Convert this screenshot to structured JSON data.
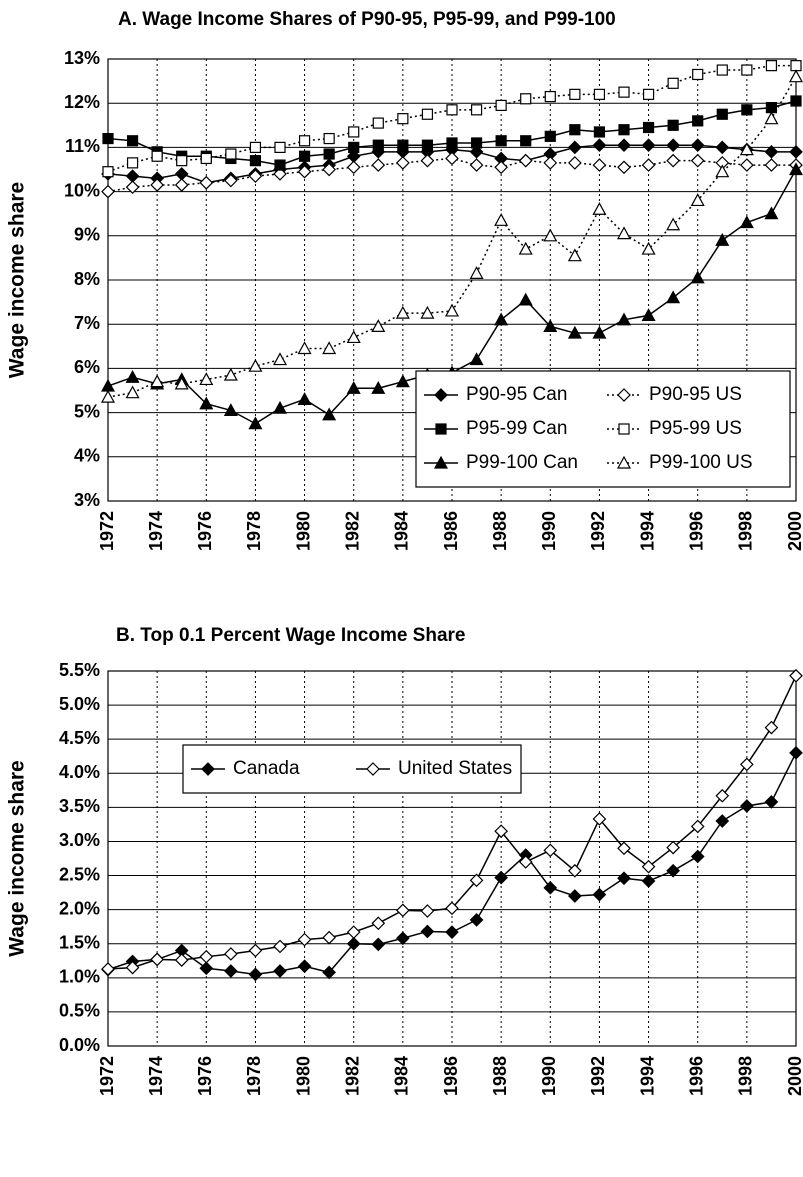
{
  "chart_data": [
    {
      "type": "line",
      "title": "A. Wage Income Shares of P90-95, P95-99, and P99-100",
      "y_label": "Wage income share",
      "x": [
        1972,
        1973,
        1974,
        1975,
        1976,
        1977,
        1978,
        1979,
        1980,
        1981,
        1982,
        1983,
        1984,
        1985,
        1986,
        1987,
        1988,
        1989,
        1990,
        1991,
        1992,
        1993,
        1994,
        1995,
        1996,
        1997,
        1998,
        1999,
        2000
      ],
      "xlim": [
        1972,
        2000
      ],
      "xticks": [
        1972,
        1974,
        1976,
        1978,
        1980,
        1982,
        1984,
        1986,
        1988,
        1990,
        1992,
        1994,
        1996,
        1998,
        2000
      ],
      "ylim": [
        3,
        13
      ],
      "yticks": [
        {
          "value": 3,
          "label": "3%"
        },
        {
          "value": 4,
          "label": "4%"
        },
        {
          "value": 5,
          "label": "5%"
        },
        {
          "value": 6,
          "label": "6%"
        },
        {
          "value": 7,
          "label": "7%"
        },
        {
          "value": 8,
          "label": "8%"
        },
        {
          "value": 9,
          "label": "9%"
        },
        {
          "value": 10,
          "label": "10%"
        },
        {
          "value": 11,
          "label": "11%"
        },
        {
          "value": 12,
          "label": "12%"
        },
        {
          "value": 13,
          "label": "13%"
        }
      ],
      "grid": true,
      "legend": "lower right",
      "legend_columns": 2,
      "series": [
        {
          "name": "P90-95 Can",
          "color": "#000000",
          "marker": "diamond",
          "filled": true,
          "dashed": false,
          "values": [
            10.4,
            10.35,
            10.3,
            10.4,
            10.2,
            10.3,
            10.4,
            10.5,
            10.55,
            10.6,
            10.8,
            10.9,
            10.9,
            10.9,
            10.95,
            10.9,
            10.75,
            10.7,
            10.85,
            11.0,
            11.05,
            11.05,
            11.05,
            11.05,
            11.05,
            11.0,
            10.95,
            10.9,
            10.9
          ]
        },
        {
          "name": "P90-95 US",
          "color": "#000000",
          "marker": "diamond",
          "filled": false,
          "dashed": true,
          "values": [
            10.0,
            10.1,
            10.15,
            10.15,
            10.2,
            10.25,
            10.35,
            10.4,
            10.45,
            10.5,
            10.55,
            10.6,
            10.65,
            10.7,
            10.75,
            10.6,
            10.55,
            10.7,
            10.65,
            10.65,
            10.6,
            10.55,
            10.6,
            10.7,
            10.7,
            10.65,
            10.6,
            10.6,
            10.6
          ]
        },
        {
          "name": "P95-99 Can",
          "color": "#000000",
          "marker": "square",
          "filled": true,
          "dashed": false,
          "values": [
            11.2,
            11.15,
            10.9,
            10.8,
            10.8,
            10.75,
            10.7,
            10.6,
            10.8,
            10.85,
            11.0,
            11.05,
            11.05,
            11.05,
            11.1,
            11.1,
            11.15,
            11.15,
            11.25,
            11.4,
            11.35,
            11.4,
            11.45,
            11.5,
            11.6,
            11.75,
            11.85,
            11.9,
            12.05
          ]
        },
        {
          "name": "P95-99 US",
          "color": "#000000",
          "marker": "square",
          "filled": false,
          "dashed": true,
          "values": [
            10.45,
            10.65,
            10.8,
            10.7,
            10.75,
            10.85,
            11.0,
            11.0,
            11.15,
            11.2,
            11.35,
            11.55,
            11.65,
            11.75,
            11.85,
            11.85,
            11.95,
            12.1,
            12.15,
            12.2,
            12.2,
            12.25,
            12.2,
            12.45,
            12.65,
            12.75,
            12.75,
            12.85,
            12.85
          ]
        },
        {
          "name": "P99-100 Can",
          "color": "#000000",
          "marker": "triangle",
          "filled": true,
          "dashed": false,
          "values": [
            5.6,
            5.8,
            5.65,
            5.75,
            5.2,
            5.05,
            4.75,
            5.1,
            5.3,
            4.95,
            5.55,
            5.55,
            5.7,
            5.85,
            5.9,
            6.2,
            7.1,
            7.55,
            6.95,
            6.8,
            6.8,
            7.1,
            7.2,
            7.6,
            8.05,
            8.9,
            9.3,
            9.5,
            10.5
          ]
        },
        {
          "name": "P99-100 US",
          "color": "#000000",
          "marker": "triangle",
          "filled": false,
          "dashed": true,
          "values": [
            5.35,
            5.45,
            5.7,
            5.65,
            5.75,
            5.85,
            6.05,
            6.2,
            6.45,
            6.45,
            6.7,
            6.95,
            7.25,
            7.25,
            7.3,
            8.15,
            9.35,
            8.7,
            9.0,
            8.55,
            9.6,
            9.05,
            8.7,
            9.25,
            9.8,
            10.45,
            10.95,
            11.65,
            12.6
          ]
        }
      ]
    },
    {
      "type": "line",
      "title": "B. Top 0.1 Percent Wage Income Share",
      "y_label": "Wage income share",
      "x": [
        1972,
        1973,
        1974,
        1975,
        1976,
        1977,
        1978,
        1979,
        1980,
        1981,
        1982,
        1983,
        1984,
        1985,
        1986,
        1987,
        1988,
        1989,
        1990,
        1991,
        1992,
        1993,
        1994,
        1995,
        1996,
        1997,
        1998,
        1999,
        2000
      ],
      "xlim": [
        1972,
        2000
      ],
      "xticks": [
        1972,
        1974,
        1976,
        1978,
        1980,
        1982,
        1984,
        1986,
        1988,
        1990,
        1992,
        1994,
        1996,
        1998,
        2000
      ],
      "ylim": [
        0,
        5.5
      ],
      "yticks": [
        {
          "value": 0,
          "label": "0.0%"
        },
        {
          "value": 0.5,
          "label": "0.5%"
        },
        {
          "value": 1,
          "label": "1.0%"
        },
        {
          "value": 1.5,
          "label": "1.5%"
        },
        {
          "value": 2,
          "label": "2.0%"
        },
        {
          "value": 2.5,
          "label": "2.5%"
        },
        {
          "value": 3,
          "label": "3.0%"
        },
        {
          "value": 3.5,
          "label": "3.5%"
        },
        {
          "value": 4,
          "label": "4.0%"
        },
        {
          "value": 4.5,
          "label": "4.5%"
        },
        {
          "value": 5,
          "label": "5.0%"
        },
        {
          "value": 5.5,
          "label": "5.5%"
        }
      ],
      "grid": true,
      "legend": "upper left",
      "legend_columns": 2,
      "series": [
        {
          "name": "Canada",
          "color": "#000000",
          "marker": "diamond",
          "filled": true,
          "dashed": false,
          "values": [
            1.12,
            1.24,
            1.27,
            1.4,
            1.14,
            1.1,
            1.05,
            1.1,
            1.17,
            1.08,
            1.5,
            1.49,
            1.58,
            1.68,
            1.67,
            1.85,
            2.47,
            2.8,
            2.32,
            2.2,
            2.22,
            2.46,
            2.42,
            2.57,
            2.78,
            3.3,
            3.52,
            3.58,
            4.3
          ]
        },
        {
          "name": "United States",
          "color": "#000000",
          "marker": "diamond",
          "filled": false,
          "dashed": false,
          "values": [
            1.13,
            1.15,
            1.27,
            1.26,
            1.31,
            1.35,
            1.4,
            1.46,
            1.56,
            1.59,
            1.67,
            1.8,
            1.99,
            1.98,
            2.02,
            2.43,
            3.15,
            2.7,
            2.87,
            2.57,
            3.33,
            2.9,
            2.63,
            2.91,
            3.22,
            3.67,
            4.13,
            4.67,
            5.43
          ]
        }
      ]
    }
  ]
}
